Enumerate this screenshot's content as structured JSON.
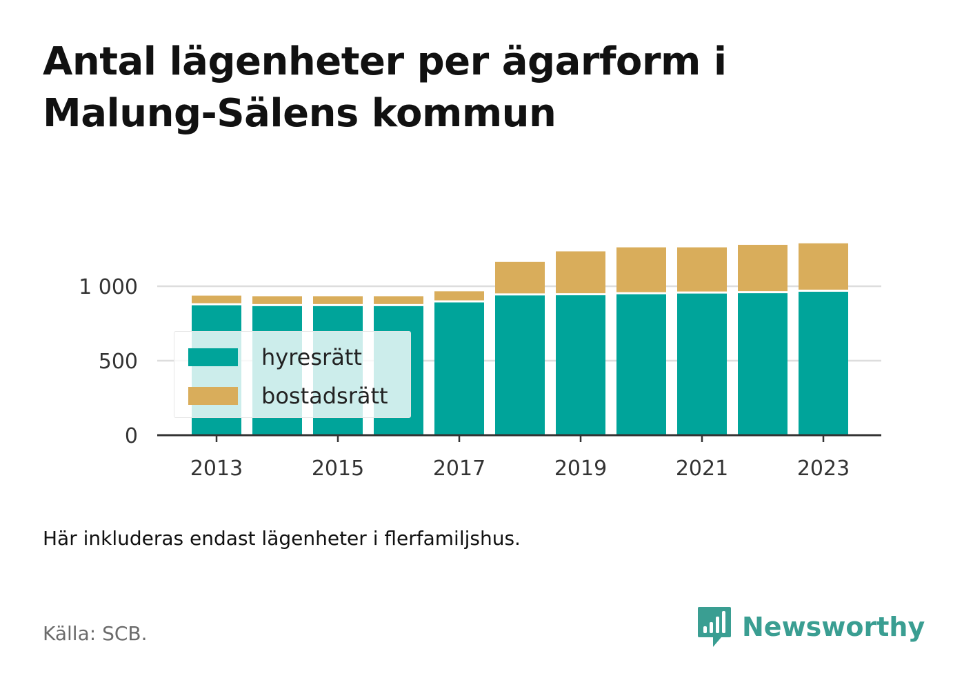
{
  "title": "Antal lägenheter per ägarform i Malung-Sälens kommun",
  "note": "Här inkluderas endast lägenheter i flerfamiljshus.",
  "source": "Källa: SCB.",
  "brand": {
    "name": "Newsworthy",
    "color": "#3a9e92",
    "icon": "bar-chart-speech-icon"
  },
  "colors": {
    "hyresratt": "#00a49a",
    "bostadsratt": "#d9ad5b",
    "grid": "#dddddd",
    "axis": "#333333"
  },
  "legend": [
    {
      "label": "hyresrätt",
      "color": "#00a49a"
    },
    {
      "label": "bostadsrätt",
      "color": "#d9ad5b"
    }
  ],
  "chart_data": {
    "type": "bar",
    "stacked": true,
    "x": [
      2013,
      2014,
      2015,
      2016,
      2017,
      2018,
      2019,
      2020,
      2021,
      2022,
      2023
    ],
    "series": [
      {
        "name": "hyresrätt",
        "values": [
          879,
          873,
          873,
          873,
          898,
          945,
          946,
          953,
          958,
          960,
          970
        ]
      },
      {
        "name": "bostadsrätt",
        "values": [
          58,
          60,
          60,
          60,
          68,
          218,
          288,
          308,
          303,
          318,
          318
        ]
      }
    ],
    "yticks": [
      0,
      500,
      1000
    ],
    "ytick_labels": [
      "0",
      "500",
      "1 000"
    ],
    "xticks": [
      2013,
      2015,
      2017,
      2019,
      2021,
      2023
    ],
    "xtick_labels": [
      "2013",
      "2015",
      "2017",
      "2019",
      "2021",
      "2023"
    ],
    "ylim": [
      0,
      1300
    ],
    "grid": true,
    "legend_position": "bottom-left"
  }
}
